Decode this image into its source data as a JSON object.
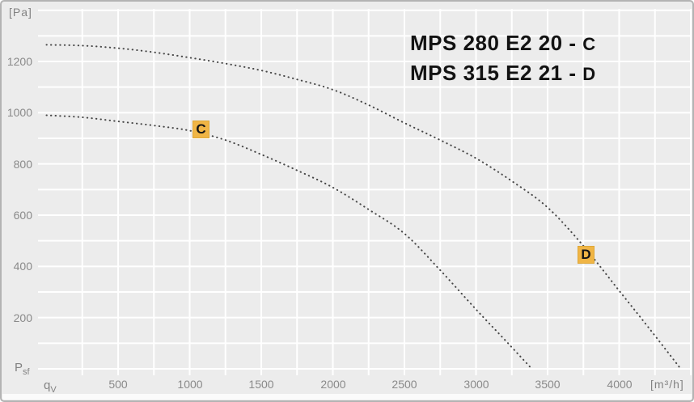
{
  "frame": {
    "y_unit": "[Pa]",
    "x_unit": "[m³/h]",
    "y_axis_symbol": "P",
    "y_axis_symbol_sub": "sf",
    "x_axis_symbol": "q",
    "x_axis_symbol_sub": "V"
  },
  "legend": {
    "separator": "-",
    "entries": [
      {
        "model": "MPS 280 E2 20",
        "suffix": "C"
      },
      {
        "model": "MPS 315 E2 21",
        "suffix": "D"
      }
    ]
  },
  "colors": {
    "background": "#ececec",
    "gridline": "#ffffff",
    "curve_dots": "#474747",
    "marker_fill": "#f0b545",
    "marker_text": "#141414",
    "tick_text": "#8a8a8a",
    "legend_text": "#121212",
    "frame_border": "#b3b3b3"
  },
  "chart_data": {
    "type": "line",
    "title": "",
    "xlabel": "qV [m³/h]",
    "ylabel": "Psf [Pa]",
    "xlim": [
      0,
      4500
    ],
    "ylim": [
      0,
      1400
    ],
    "grid": {
      "x_step": 250,
      "y_step": 100,
      "style": "white on light gray"
    },
    "x_ticks": [
      500,
      1000,
      1500,
      2000,
      2500,
      3000,
      3500,
      4000
    ],
    "y_ticks": [
      200,
      400,
      600,
      800,
      1000,
      1200
    ],
    "line_style": "dotted",
    "legend_position": "top-right inside plot",
    "series": [
      {
        "name": "MPS 280 E2 20",
        "marker": "C",
        "marker_pos": {
          "qv": 1080,
          "pa": 935
        },
        "points": [
          [
            0,
            990
          ],
          [
            250,
            982
          ],
          [
            500,
            966
          ],
          [
            750,
            950
          ],
          [
            1000,
            930
          ],
          [
            1250,
            893
          ],
          [
            1500,
            837
          ],
          [
            1750,
            775
          ],
          [
            2000,
            708
          ],
          [
            2250,
            622
          ],
          [
            2500,
            528
          ],
          [
            2750,
            385
          ],
          [
            3000,
            232
          ],
          [
            3200,
            114
          ],
          [
            3390,
            0
          ]
        ]
      },
      {
        "name": "MPS 315 E2 21",
        "marker": "D",
        "marker_pos": {
          "qv": 3770,
          "pa": 445
        },
        "points": [
          [
            0,
            1265
          ],
          [
            250,
            1262
          ],
          [
            500,
            1252
          ],
          [
            750,
            1236
          ],
          [
            1000,
            1215
          ],
          [
            1250,
            1192
          ],
          [
            1500,
            1165
          ],
          [
            1750,
            1130
          ],
          [
            2000,
            1090
          ],
          [
            2250,
            1030
          ],
          [
            2500,
            960
          ],
          [
            2750,
            893
          ],
          [
            3000,
            822
          ],
          [
            3250,
            733
          ],
          [
            3500,
            630
          ],
          [
            3750,
            480
          ],
          [
            4000,
            305
          ],
          [
            4200,
            165
          ],
          [
            4430,
            0
          ]
        ]
      }
    ]
  }
}
